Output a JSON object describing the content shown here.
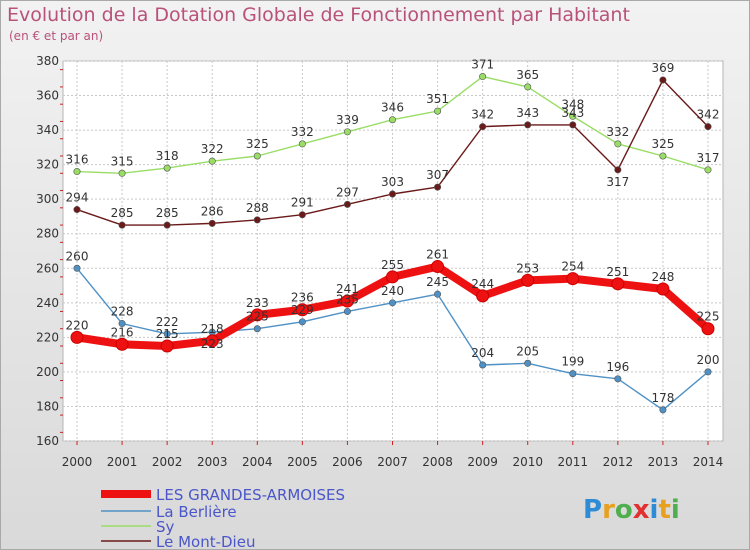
{
  "title": "Evolution de la Dotation Globale de Fonctionnement par Habitant",
  "subtitle": "(en € et par an)",
  "logo_text": "Proxiti",
  "chart_data": {
    "type": "line",
    "x": [
      2000,
      2001,
      2002,
      2003,
      2004,
      2005,
      2006,
      2007,
      2008,
      2009,
      2010,
      2011,
      2012,
      2013,
      2014
    ],
    "ylim": [
      160,
      380
    ],
    "yticks": [
      160,
      180,
      200,
      220,
      240,
      260,
      280,
      300,
      320,
      340,
      360,
      380
    ],
    "grid": true,
    "legend_position": "bottom-left",
    "series": [
      {
        "name": "LES GRANDES-ARMOISES",
        "color": "#ee1111",
        "values": [
          220,
          216,
          215,
          218,
          233,
          236,
          241,
          255,
          261,
          244,
          253,
          254,
          251,
          248,
          225
        ]
      },
      {
        "name": "La Berlière",
        "color": "#4f91c5",
        "values": [
          260,
          228,
          222,
          223,
          225,
          229,
          235,
          240,
          245,
          204,
          205,
          199,
          196,
          178,
          200
        ]
      },
      {
        "name": "Sy",
        "color": "#99dd66",
        "values": [
          316,
          315,
          318,
          322,
          325,
          332,
          339,
          346,
          351,
          371,
          365,
          348,
          332,
          325,
          317
        ]
      },
      {
        "name": "Le Mont-Dieu",
        "color": "#6b1a1a",
        "values": [
          294,
          285,
          285,
          286,
          288,
          291,
          297,
          303,
          307,
          342,
          343,
          343,
          317,
          369,
          342
        ]
      }
    ]
  }
}
